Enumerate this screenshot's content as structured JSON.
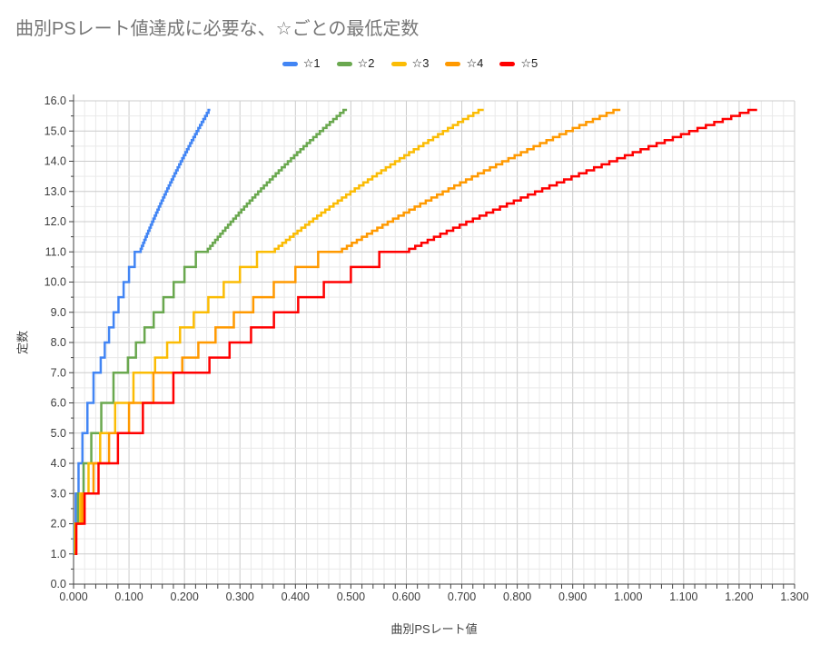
{
  "title": "曲別PSレート値達成に必要な、☆ごとの最低定数",
  "legend": {
    "position": "top",
    "items": [
      {
        "label": "☆1",
        "color": "#4285F4"
      },
      {
        "label": "☆2",
        "color": "#6AA84F"
      },
      {
        "label": "☆3",
        "color": "#FBBC04"
      },
      {
        "label": "☆4",
        "color": "#FF9900"
      },
      {
        "label": "☆5",
        "color": "#FF0000"
      }
    ]
  },
  "chart_data": {
    "type": "line",
    "subtype": "step",
    "title": "曲別PSレート値達成に必要な、☆ごとの最低定数",
    "xlabel": "曲別PSレート値",
    "ylabel": "定数",
    "xlim": [
      0,
      1.3
    ],
    "ylim": [
      0,
      16
    ],
    "grid": true,
    "x_major_step": 0.1,
    "x_minor_step": 0.02,
    "y_major_step": 1.0,
    "y_minor_step": 0.5,
    "x_tick_labels": [
      "0.000",
      "0.100",
      "0.200",
      "0.300",
      "0.400",
      "0.500",
      "0.600",
      "0.700",
      "0.800",
      "0.900",
      "1.000",
      "1.100",
      "1.200",
      "1.300"
    ],
    "y_tick_labels": [
      "0.0",
      "1.0",
      "2.0",
      "3.0",
      "4.0",
      "5.0",
      "6.0",
      "7.0",
      "8.0",
      "9.0",
      "10.0",
      "11.0",
      "12.0",
      "13.0",
      "14.0",
      "15.0",
      "16.0"
    ],
    "legend_position": "top",
    "constants": [
      1.0,
      2.0,
      3.0,
      4.0,
      5.0,
      6.0,
      7.0,
      7.5,
      8.0,
      8.5,
      9.0,
      9.5,
      10.0,
      10.5,
      11.0,
      11.1,
      11.2,
      11.3,
      11.4,
      11.5,
      11.6,
      11.7,
      11.8,
      11.9,
      12.0,
      12.1,
      12.2,
      12.3,
      12.4,
      12.5,
      12.6,
      12.7,
      12.8,
      12.9,
      13.0,
      13.1,
      13.2,
      13.3,
      13.4,
      13.5,
      13.6,
      13.7,
      13.8,
      13.9,
      14.0,
      14.1,
      14.2,
      14.3,
      14.4,
      14.5,
      14.6,
      14.7,
      14.8,
      14.9,
      15.0,
      15.1,
      15.2,
      15.3,
      15.4,
      15.5,
      15.6,
      15.7
    ],
    "threshold_rule": "constant c is the minimum required up to rate = c*c*star/1000; the curve steps up to the next constant at each such threshold",
    "series": [
      {
        "name": "☆1",
        "star": 1,
        "color": "#4285F4",
        "start": [
          0.0005,
          1.0
        ],
        "end": [
          0.2465,
          15.7
        ]
      },
      {
        "name": "☆2",
        "star": 2,
        "color": "#6AA84F",
        "start": [
          0.001,
          1.0
        ],
        "end": [
          0.493,
          15.7
        ]
      },
      {
        "name": "☆3",
        "star": 3,
        "color": "#FBBC04",
        "start": [
          0.0015,
          1.0
        ],
        "end": [
          0.7395,
          15.7
        ]
      },
      {
        "name": "☆4",
        "star": 4,
        "color": "#FF9900",
        "start": [
          0.002,
          1.0
        ],
        "end": [
          0.986,
          15.7
        ]
      },
      {
        "name": "☆5",
        "star": 5,
        "color": "#FF0000",
        "start": [
          0.0025,
          1.0
        ],
        "end": [
          1.2325,
          15.7
        ]
      }
    ]
  },
  "colors": {
    "background": "#ffffff",
    "title_text": "#757575",
    "legend_text": "#212121",
    "tick_text": "#3c3c3c",
    "axis_title_text": "#424242",
    "axis_line": "#424242",
    "grid_major": "#cccccc",
    "grid_minor": "#e9e9e9"
  }
}
